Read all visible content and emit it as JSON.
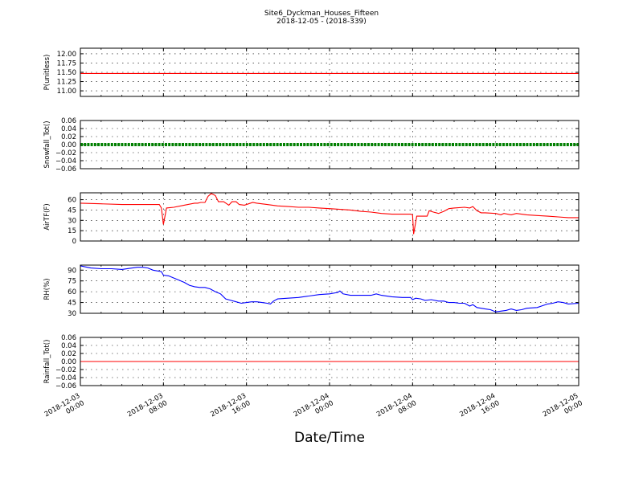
{
  "title": "Site6_Dyckman_Houses_Fifteen",
  "subtitle": "2018-12-05 - (2018-339)",
  "xlabel": "Date/Time",
  "x_ticks": [
    {
      "t": 0,
      "line1": "2018-12-03",
      "line2": "00:00"
    },
    {
      "t": 8,
      "line1": "2018-12-03",
      "line2": "08:00"
    },
    {
      "t": 16,
      "line1": "2018-12-03",
      "line2": "16:00"
    },
    {
      "t": 24,
      "line1": "2018-12-04",
      "line2": "00:00"
    },
    {
      "t": 32,
      "line1": "2018-12-04",
      "line2": "08:00"
    },
    {
      "t": 40,
      "line1": "2018-12-04",
      "line2": "16:00"
    },
    {
      "t": 48,
      "line1": "2018-12-05",
      "line2": "00:00"
    }
  ],
  "chart_data": [
    {
      "type": "line",
      "ylabel": "P(unitless)",
      "color": "#ff0000",
      "ylim": [
        10.85,
        12.15
      ],
      "yticks": [
        11.0,
        11.25,
        11.5,
        11.75,
        12.0
      ],
      "ytick_labels": [
        "11.00",
        "11.25",
        "11.50",
        "11.75",
        "12.00"
      ],
      "x_start": "2018-12-03 00:00",
      "x_end": "2018-12-05 00:00",
      "series": [
        {
          "points": [
            [
              0,
              11.47
            ],
            [
              48,
              11.47
            ]
          ]
        }
      ]
    },
    {
      "type": "line",
      "ylabel": "Snowfall_Tot()",
      "color": "#008000",
      "marker": "dotted-thick",
      "ylim": [
        -0.06,
        0.06
      ],
      "yticks": [
        -0.06,
        -0.04,
        -0.02,
        0.0,
        0.02,
        0.04,
        0.06
      ],
      "ytick_labels": [
        "−0.06",
        "−0.04",
        "−0.02",
        "0.00",
        "0.02",
        "0.04",
        "0.06"
      ],
      "series": [
        {
          "points": [
            [
              0,
              0.0
            ],
            [
              48,
              0.0
            ]
          ]
        }
      ]
    },
    {
      "type": "line",
      "ylabel": "AirTF(F)",
      "color": "#ff0000",
      "ylim": [
        0,
        70
      ],
      "yticks": [
        0,
        15,
        30,
        45,
        60
      ],
      "ytick_labels": [
        "0",
        "15",
        "30",
        "45",
        "60"
      ],
      "series": [
        {
          "points": [
            [
              0,
              55
            ],
            [
              2,
              54
            ],
            [
              4,
              53
            ],
            [
              6,
              53
            ],
            [
              7.6,
              53
            ],
            [
              7.8,
              48
            ],
            [
              8.0,
              24
            ],
            [
              8.3,
              48
            ],
            [
              9,
              49
            ],
            [
              10,
              52
            ],
            [
              11,
              55
            ],
            [
              11.3,
              55
            ],
            [
              11.6,
              56
            ],
            [
              12,
              56
            ],
            [
              12.3,
              65
            ],
            [
              12.6,
              69
            ],
            [
              13,
              66
            ],
            [
              13.3,
              57
            ],
            [
              13.8,
              57
            ],
            [
              14.3,
              52
            ],
            [
              14.6,
              57
            ],
            [
              15,
              57
            ],
            [
              15.3,
              53
            ],
            [
              15.8,
              52
            ],
            [
              16.2,
              54
            ],
            [
              16.6,
              56
            ],
            [
              17,
              55
            ],
            [
              18,
              53
            ],
            [
              19,
              51
            ],
            [
              20,
              50
            ],
            [
              21,
              49
            ],
            [
              22,
              49
            ],
            [
              23,
              48
            ],
            [
              24,
              47
            ],
            [
              25,
              46
            ],
            [
              26,
              45
            ],
            [
              27,
              43
            ],
            [
              28,
              42
            ],
            [
              29,
              40
            ],
            [
              30,
              39
            ],
            [
              31,
              39
            ],
            [
              31.8,
              39
            ],
            [
              32,
              38
            ],
            [
              32.1,
              10
            ],
            [
              32.4,
              36
            ],
            [
              33,
              36
            ],
            [
              33.4,
              36
            ],
            [
              33.6,
              44
            ],
            [
              34,
              42
            ],
            [
              34.5,
              40
            ],
            [
              35,
              43
            ],
            [
              35.5,
              47
            ],
            [
              36,
              48
            ],
            [
              37,
              49
            ],
            [
              37.5,
              48
            ],
            [
              37.8,
              50
            ],
            [
              38.2,
              44
            ],
            [
              38.6,
              41
            ],
            [
              39,
              41
            ],
            [
              40,
              40
            ],
            [
              40.5,
              38
            ],
            [
              40.8,
              40
            ],
            [
              41.5,
              38
            ],
            [
              42,
              40
            ],
            [
              43,
              38
            ],
            [
              44,
              37
            ],
            [
              45,
              36
            ],
            [
              46,
              35
            ],
            [
              47,
              34
            ],
            [
              48,
              34
            ]
          ]
        }
      ]
    },
    {
      "type": "line",
      "ylabel": "RH(%)",
      "color": "#0000ff",
      "ylim": [
        30,
        97
      ],
      "yticks": [
        30,
        45,
        60,
        75,
        90
      ],
      "ytick_labels": [
        "30",
        "45",
        "60",
        "75",
        "90"
      ],
      "series": [
        {
          "points": [
            [
              0,
              96
            ],
            [
              1,
              93
            ],
            [
              2,
              92
            ],
            [
              3,
              92
            ],
            [
              4,
              91
            ],
            [
              5,
              93
            ],
            [
              5.5,
              94
            ],
            [
              6,
              94
            ],
            [
              6.5,
              93
            ],
            [
              7,
              90
            ],
            [
              7.8,
              88
            ],
            [
              8,
              83
            ],
            [
              8.5,
              82
            ],
            [
              9,
              79
            ],
            [
              9.5,
              76
            ],
            [
              10,
              73
            ],
            [
              10.5,
              69
            ],
            [
              11,
              67
            ],
            [
              11.5,
              66
            ],
            [
              12,
              66
            ],
            [
              12.5,
              64
            ],
            [
              13,
              60
            ],
            [
              13.5,
              57
            ],
            [
              14,
              50
            ],
            [
              14.5,
              48
            ],
            [
              15,
              46
            ],
            [
              15.5,
              44
            ],
            [
              16,
              45
            ],
            [
              16.5,
              46
            ],
            [
              17,
              46
            ],
            [
              17.5,
              45
            ],
            [
              18,
              44
            ],
            [
              18.3,
              43
            ],
            [
              18.6,
              47
            ],
            [
              19,
              50
            ],
            [
              20,
              51
            ],
            [
              21,
              52
            ],
            [
              22,
              54
            ],
            [
              23,
              56
            ],
            [
              24,
              57
            ],
            [
              24.8,
              59
            ],
            [
              25,
              61
            ],
            [
              25.3,
              57
            ],
            [
              26,
              55
            ],
            [
              27,
              55
            ],
            [
              28,
              55
            ],
            [
              28.5,
              57
            ],
            [
              29,
              55
            ],
            [
              30,
              53
            ],
            [
              31,
              52
            ],
            [
              31.8,
              52
            ],
            [
              32,
              49
            ],
            [
              32.3,
              51
            ],
            [
              32.8,
              50
            ],
            [
              33.2,
              48
            ],
            [
              33.8,
              49
            ],
            [
              34.5,
              47
            ],
            [
              35,
              47
            ],
            [
              35.5,
              45
            ],
            [
              36,
              45
            ],
            [
              36.5,
              44
            ],
            [
              37,
              44
            ],
            [
              37.5,
              40
            ],
            [
              37.8,
              42
            ],
            [
              38.2,
              38
            ],
            [
              38.6,
              37
            ],
            [
              39,
              36
            ],
            [
              39.5,
              35
            ],
            [
              40,
              32
            ],
            [
              40.5,
              33
            ],
            [
              41,
              34
            ],
            [
              41.5,
              36
            ],
            [
              42,
              34
            ],
            [
              42.5,
              35
            ],
            [
              43,
              37
            ],
            [
              44,
              38
            ],
            [
              45,
              43
            ],
            [
              45.5,
              44
            ],
            [
              46,
              46
            ],
            [
              46.5,
              45
            ],
            [
              47,
              43
            ],
            [
              48,
              44
            ]
          ]
        }
      ]
    },
    {
      "type": "line",
      "ylabel": "Rainfall_Tot()",
      "color": "#ff0000",
      "ylim": [
        -0.06,
        0.06
      ],
      "yticks": [
        -0.06,
        -0.04,
        -0.02,
        0.0,
        0.02,
        0.04,
        0.06
      ],
      "ytick_labels": [
        "−0.06",
        "−0.04",
        "−0.02",
        "0.00",
        "0.02",
        "0.04",
        "0.06"
      ],
      "series": [
        {
          "points": [
            [
              0,
              0.0
            ],
            [
              48,
              0.0
            ]
          ]
        }
      ]
    }
  ]
}
